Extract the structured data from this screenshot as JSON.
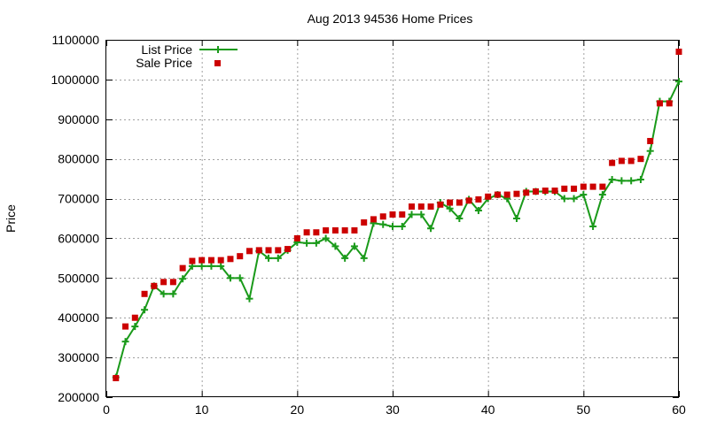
{
  "chart_data": {
    "type": "line",
    "title": "Aug 2013 94536 Home Prices",
    "xlabel": "",
    "ylabel": "Price",
    "xlim": [
      0,
      60
    ],
    "ylim": [
      200000,
      1100000
    ],
    "x_ticks": [
      0,
      10,
      20,
      30,
      40,
      50,
      60
    ],
    "y_ticks": [
      200000,
      300000,
      400000,
      500000,
      600000,
      700000,
      800000,
      900000,
      1000000,
      1100000
    ],
    "grid": true,
    "legend_position": "top-left",
    "series": [
      {
        "name": "List Price",
        "style": "line-with-plus-markers",
        "color": "#1a9a1a",
        "points": [
          [
            1,
            250000
          ],
          [
            2,
            340000
          ],
          [
            3,
            378000
          ],
          [
            4,
            420000
          ],
          [
            5,
            480000
          ],
          [
            6,
            460000
          ],
          [
            7,
            460000
          ],
          [
            8,
            498000
          ],
          [
            9,
            530000
          ],
          [
            10,
            530000
          ],
          [
            11,
            530000
          ],
          [
            12,
            530000
          ],
          [
            13,
            500000
          ],
          [
            14,
            500000
          ],
          [
            15,
            448000
          ],
          [
            16,
            568000
          ],
          [
            17,
            550000
          ],
          [
            18,
            550000
          ],
          [
            19,
            570000
          ],
          [
            20,
            590000
          ],
          [
            21,
            588000
          ],
          [
            22,
            588000
          ],
          [
            23,
            600000
          ],
          [
            24,
            580000
          ],
          [
            25,
            550000
          ],
          [
            26,
            580000
          ],
          [
            27,
            550000
          ],
          [
            28,
            638000
          ],
          [
            29,
            635000
          ],
          [
            30,
            630000
          ],
          [
            31,
            630000
          ],
          [
            32,
            660000
          ],
          [
            33,
            660000
          ],
          [
            34,
            625000
          ],
          [
            35,
            690000
          ],
          [
            36,
            675000
          ],
          [
            37,
            650000
          ],
          [
            38,
            698000
          ],
          [
            39,
            670000
          ],
          [
            40,
            700000
          ],
          [
            41,
            710000
          ],
          [
            42,
            700000
          ],
          [
            43,
            650000
          ],
          [
            44,
            718000
          ],
          [
            45,
            718000
          ],
          [
            46,
            718000
          ],
          [
            47,
            718000
          ],
          [
            48,
            700000
          ],
          [
            49,
            700000
          ],
          [
            50,
            710000
          ],
          [
            51,
            630000
          ],
          [
            52,
            710000
          ],
          [
            53,
            748000
          ],
          [
            54,
            745000
          ],
          [
            55,
            745000
          ],
          [
            56,
            748000
          ],
          [
            57,
            820000
          ],
          [
            58,
            945000
          ],
          [
            59,
            945000
          ],
          [
            60,
            995000
          ]
        ]
      },
      {
        "name": "Sale Price",
        "style": "square-markers",
        "color": "#cc0000",
        "points": [
          [
            1,
            248000
          ],
          [
            2,
            378000
          ],
          [
            3,
            400000
          ],
          [
            4,
            460000
          ],
          [
            5,
            480000
          ],
          [
            6,
            490000
          ],
          [
            7,
            490000
          ],
          [
            8,
            525000
          ],
          [
            9,
            543000
          ],
          [
            10,
            545000
          ],
          [
            11,
            545000
          ],
          [
            12,
            545000
          ],
          [
            13,
            548000
          ],
          [
            14,
            555000
          ],
          [
            15,
            568000
          ],
          [
            16,
            570000
          ],
          [
            17,
            570000
          ],
          [
            18,
            570000
          ],
          [
            19,
            573000
          ],
          [
            20,
            600000
          ],
          [
            21,
            615000
          ],
          [
            22,
            615000
          ],
          [
            23,
            620000
          ],
          [
            24,
            620000
          ],
          [
            25,
            620000
          ],
          [
            26,
            620000
          ],
          [
            27,
            640000
          ],
          [
            28,
            648000
          ],
          [
            29,
            655000
          ],
          [
            30,
            660000
          ],
          [
            31,
            660000
          ],
          [
            32,
            680000
          ],
          [
            33,
            680000
          ],
          [
            34,
            680000
          ],
          [
            35,
            685000
          ],
          [
            36,
            690000
          ],
          [
            37,
            690000
          ],
          [
            38,
            695000
          ],
          [
            39,
            698000
          ],
          [
            40,
            705000
          ],
          [
            41,
            710000
          ],
          [
            42,
            710000
          ],
          [
            43,
            712000
          ],
          [
            44,
            715000
          ],
          [
            45,
            718000
          ],
          [
            46,
            720000
          ],
          [
            47,
            720000
          ],
          [
            48,
            725000
          ],
          [
            49,
            725000
          ],
          [
            50,
            730000
          ],
          [
            51,
            730000
          ],
          [
            52,
            730000
          ],
          [
            53,
            790000
          ],
          [
            54,
            795000
          ],
          [
            55,
            795000
          ],
          [
            56,
            800000
          ],
          [
            57,
            845000
          ],
          [
            58,
            940000
          ],
          [
            59,
            940000
          ],
          [
            60,
            1070000
          ]
        ]
      }
    ]
  }
}
